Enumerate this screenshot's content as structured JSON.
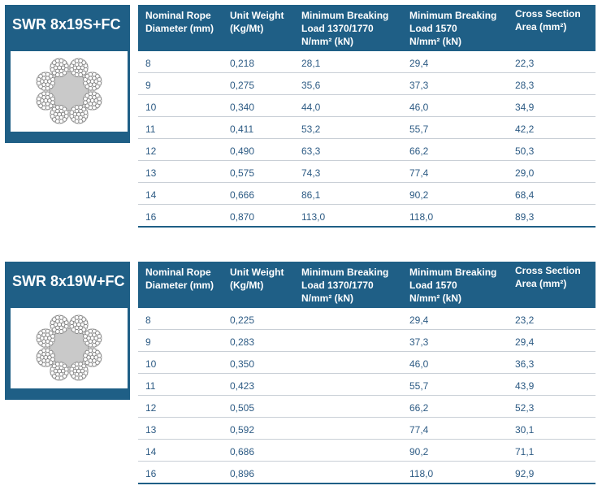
{
  "tables": [
    {
      "title": "SWR 8x19S+FC",
      "headers": {
        "h1_l1": "Nominal Rope",
        "h1_l2": "Diameter (mm)",
        "h2_l1": "Unit Weight",
        "h2_l2": "(Kg/Mt)",
        "h3_l1": "Minimum Breaking",
        "h3_l2": "Load 1370/1770",
        "h3_l3": "N/mm² (kN)",
        "h4_l1": "Minimum Breaking",
        "h4_l2": "Load 1570",
        "h4_l3": "N/mm² (kN)",
        "h5_l1": "Cross Section",
        "h5_l2": "Area (mm²)"
      },
      "rows": [
        [
          "8",
          "0,218",
          "28,1",
          "29,4",
          "22,3"
        ],
        [
          "9",
          "0,275",
          "35,6",
          "37,3",
          "28,3"
        ],
        [
          "10",
          "0,340",
          "44,0",
          "46,0",
          "34,9"
        ],
        [
          "11",
          "0,411",
          "53,2",
          "55,7",
          "42,2"
        ],
        [
          "12",
          "0,490",
          "63,3",
          "66,2",
          "50,3"
        ],
        [
          "13",
          "0,575",
          "74,3",
          "77,4",
          "29,0"
        ],
        [
          "14",
          "0,666",
          "86,1",
          "90,2",
          "68,4"
        ],
        [
          "16",
          "0,870",
          "113,0",
          "118,0",
          "89,3"
        ]
      ]
    },
    {
      "title": "SWR 8x19W+FC",
      "headers": {
        "h1_l1": "Nominal Rope",
        "h1_l2": "Diameter (mm)",
        "h2_l1": "Unit Weight",
        "h2_l2": "(Kg/Mt)",
        "h3_l1": "Minimum Breaking",
        "h3_l2": "Load 1370/1770",
        "h3_l3": "N/mm² (kN)",
        "h4_l1": "Minimum Breaking",
        "h4_l2": "Load 1570",
        "h4_l3": "N/mm² (kN)",
        "h5_l1": "Cross Section",
        "h5_l2": "Area (mm²)"
      },
      "rows": [
        [
          "8",
          "0,225",
          "",
          "29,4",
          "23,2"
        ],
        [
          "9",
          "0,283",
          "",
          "37,3",
          "29,4"
        ],
        [
          "10",
          "0,350",
          "",
          "46,0",
          "36,3"
        ],
        [
          "11",
          "0,423",
          "",
          "55,7",
          "43,9"
        ],
        [
          "12",
          "0,505",
          "",
          "66,2",
          "52,3"
        ],
        [
          "13",
          "0,592",
          "",
          "77,4",
          "30,1"
        ],
        [
          "14",
          "0,686",
          "",
          "90,2",
          "71,1"
        ],
        [
          "16",
          "0,896",
          "",
          "118,0",
          "92,9"
        ]
      ]
    }
  ]
}
